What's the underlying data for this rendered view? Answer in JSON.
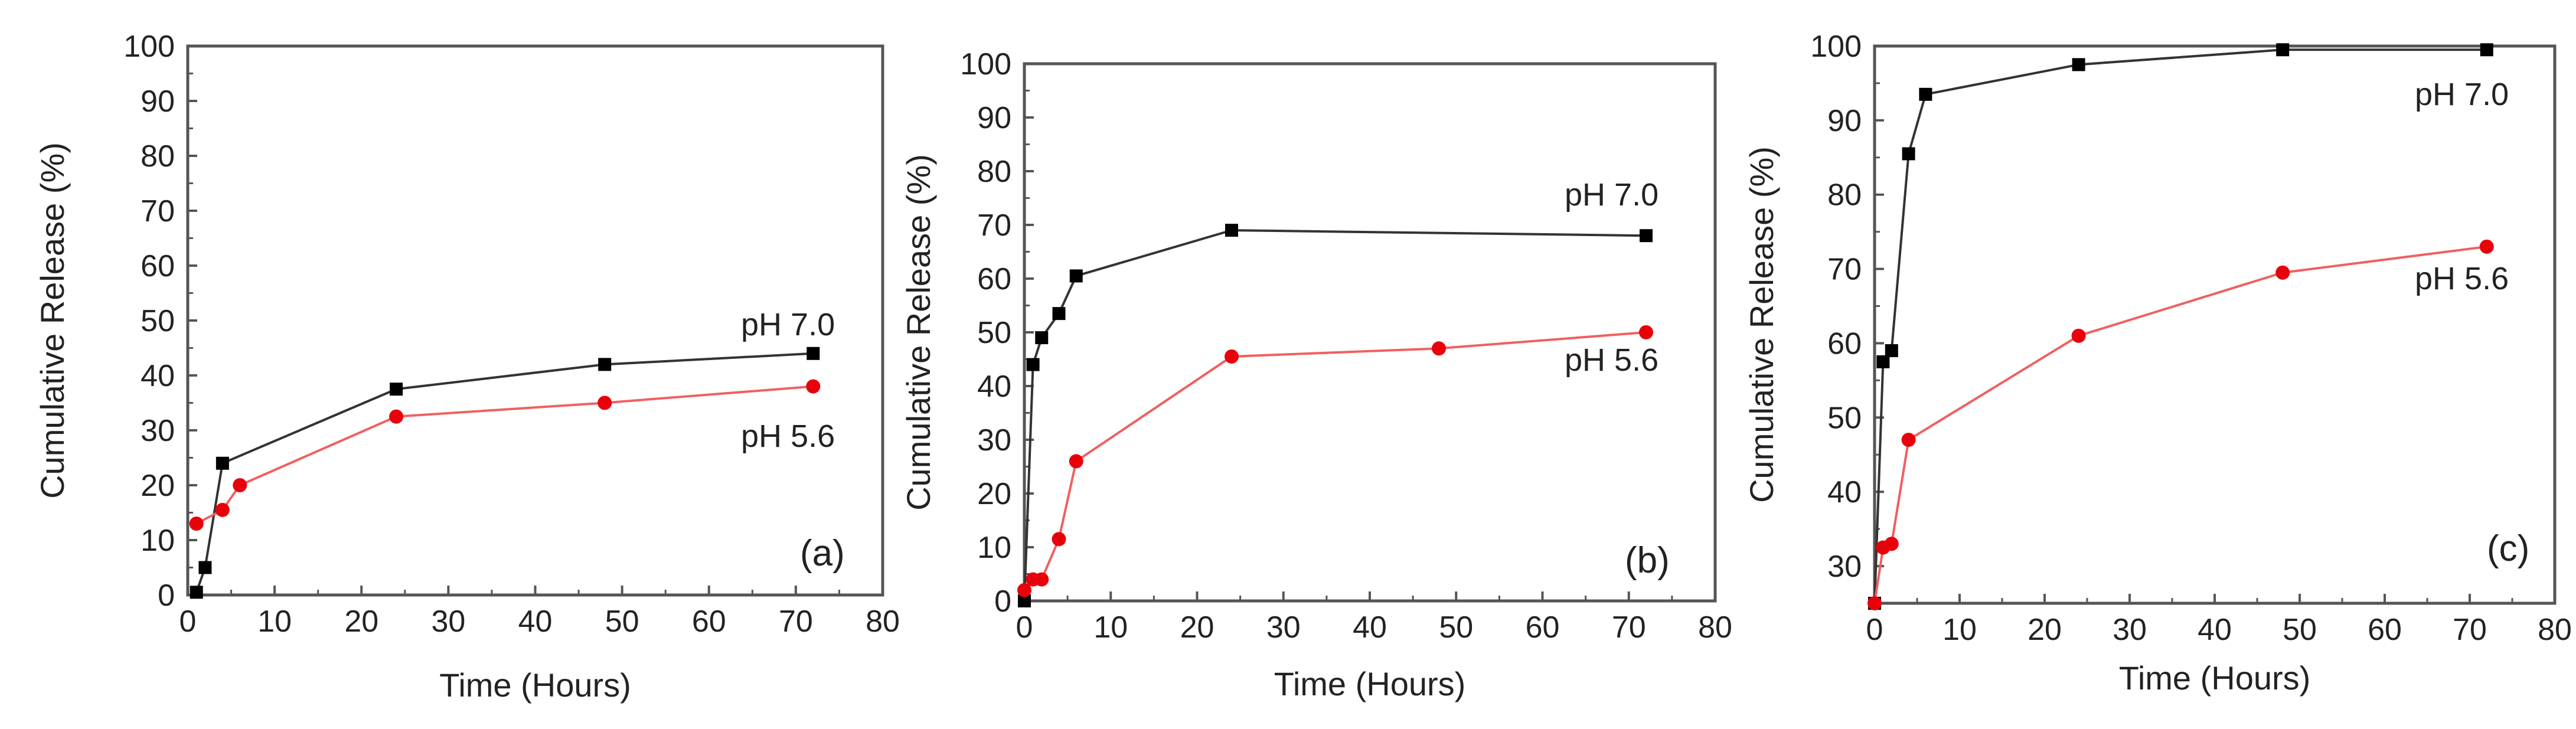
{
  "chart_data": [
    {
      "type": "line",
      "panel_label": "(a)",
      "xlabel": "Time (Hours)",
      "ylabel": "Cumulative Release (%)",
      "xlim": [
        0,
        80
      ],
      "ylim": [
        0,
        100
      ],
      "x_ticks": [
        "0",
        "10",
        "20",
        "30",
        "40",
        "50",
        "60",
        "70",
        "80"
      ],
      "y_ticks": [
        "0",
        "10",
        "20",
        "30",
        "40",
        "50",
        "60",
        "70",
        "80",
        "90",
        "100"
      ],
      "series": [
        {
          "name": "pH 7.0",
          "color": "#000000",
          "marker": "square",
          "x": [
            1,
            2,
            4,
            24,
            48,
            72
          ],
          "y": [
            0.5,
            5,
            24,
            37.5,
            42,
            44
          ]
        },
        {
          "name": "pH 5.6",
          "color": "#e8000b",
          "marker": "circle",
          "x": [
            1,
            4,
            6,
            24,
            48,
            72
          ],
          "y": [
            13,
            15.5,
            20,
            32.5,
            35,
            38
          ]
        }
      ]
    },
    {
      "type": "line",
      "panel_label": "(b)",
      "xlabel": "Time (Hours)",
      "ylabel": "Cumulative Release (%)",
      "xlim": [
        0,
        80
      ],
      "ylim": [
        0,
        100
      ],
      "x_ticks": [
        "0",
        "10",
        "20",
        "30",
        "40",
        "50",
        "60",
        "70",
        "80"
      ],
      "y_ticks": [
        "0",
        "10",
        "20",
        "30",
        "40",
        "50",
        "60",
        "70",
        "80",
        "90",
        "100"
      ],
      "series": [
        {
          "name": "pH 7.0",
          "color": "#000000",
          "marker": "square",
          "x": [
            0,
            1,
            2,
            4,
            6,
            24,
            72
          ],
          "y": [
            0,
            44,
            49,
            53.5,
            60.5,
            69,
            68
          ]
        },
        {
          "name": "pH 5.6",
          "color": "#e8000b",
          "marker": "circle",
          "x": [
            0,
            1,
            2,
            4,
            6,
            24,
            48,
            72
          ],
          "y": [
            2,
            4,
            4,
            11.5,
            26,
            45.5,
            47,
            50
          ]
        }
      ]
    },
    {
      "type": "line",
      "panel_label": "(c)",
      "xlabel": "Time (Hours)",
      "ylabel": "Cumulative Release (%)",
      "xlim": [
        0,
        80
      ],
      "ylim": [
        25,
        100
      ],
      "x_ticks": [
        "0",
        "10",
        "20",
        "30",
        "40",
        "50",
        "60",
        "70",
        "80"
      ],
      "y_ticks": [
        "30",
        "40",
        "50",
        "60",
        "70",
        "80",
        "90",
        "100"
      ],
      "series": [
        {
          "name": "pH 7.0",
          "color": "#000000",
          "marker": "square",
          "x": [
            0,
            1,
            2,
            4,
            6,
            24,
            48,
            72
          ],
          "y": [
            25,
            57.5,
            59,
            85.5,
            93.5,
            97.5,
            99.5,
            99.5
          ]
        },
        {
          "name": "pH 5.6",
          "color": "#e8000b",
          "marker": "circle",
          "x": [
            0,
            1,
            2,
            4,
            24,
            48,
            72
          ],
          "y": [
            25,
            32.5,
            33,
            47,
            61,
            69.5,
            73
          ]
        }
      ]
    }
  ]
}
